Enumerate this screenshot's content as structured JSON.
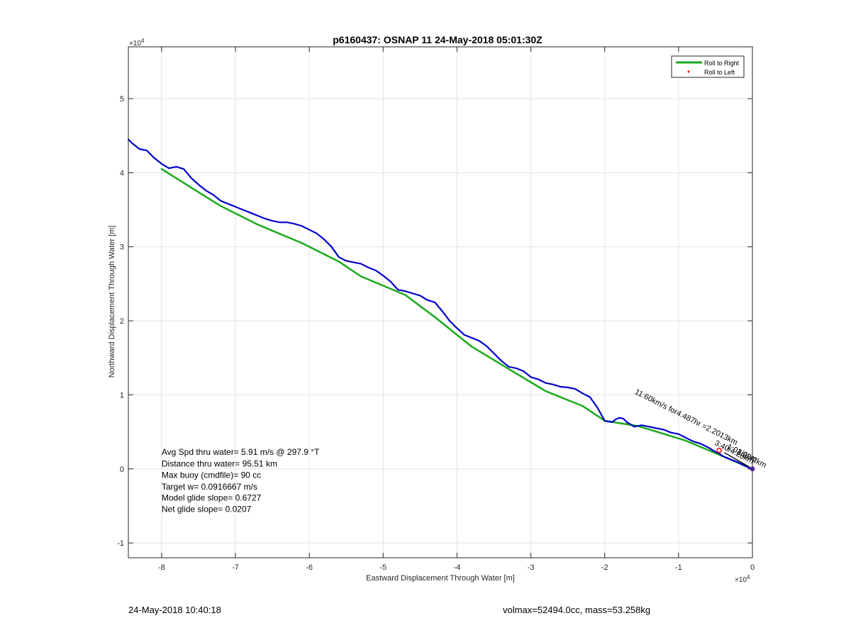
{
  "chart_data": {
    "type": "line",
    "title": "p6160437: OSNAP 11 24-May-2018 05:01:30Z",
    "xlabel": "Eastward Displacement Through Water [m]",
    "ylabel": "Northward Displacement Through Water [m]",
    "x_exponent_label": "×10",
    "x_exponent_power": "4",
    "y_exponent_label": "×10",
    "y_exponent_power": "4",
    "xlim": [
      -84500,
      0
    ],
    "ylim": [
      -12000,
      57000
    ],
    "xticks": [
      -80000,
      -70000,
      -60000,
      -50000,
      -40000,
      -30000,
      -20000,
      -10000,
      0
    ],
    "xtick_labels": [
      "-8",
      "-7",
      "-6",
      "-5",
      "-4",
      "-3",
      "-2",
      "-1",
      "0"
    ],
    "yticks": [
      -10000,
      0,
      10000,
      20000,
      30000,
      40000,
      50000
    ],
    "ytick_labels": [
      "-1",
      "0",
      "1",
      "2",
      "3",
      "4",
      "5"
    ],
    "grid": true,
    "legend_position": "top-right",
    "legend": [
      {
        "name": "Roll to Right",
        "color": "#1aaa1a",
        "style": "line"
      },
      {
        "name": "Roll to Left",
        "color": "#ff0000",
        "style": "dot"
      }
    ],
    "series": [
      {
        "name": "Roll to Right",
        "color": "#1aaa1a",
        "x": [
          0,
          -4000,
          -9000,
          -15500,
          -20000,
          -23000,
          -28000,
          -33000,
          -38000,
          -43000,
          -47000,
          -53000,
          -56000,
          -61000,
          -67000,
          -72000,
          -76000,
          -80000
        ],
        "y": [
          0,
          1700,
          3800,
          5800,
          6500,
          8500,
          10500,
          13500,
          16500,
          20500,
          23500,
          26000,
          28000,
          30500,
          33000,
          35500,
          38000,
          40500
        ]
      },
      {
        "name": "",
        "color": "#0000cc",
        "x": [
          0,
          -1000,
          -2000,
          -3000,
          -4000,
          -4500,
          -5000,
          -6000,
          -7000,
          -8000,
          -9000,
          -10000,
          -11000,
          -12000,
          -13000,
          -14000,
          -15000,
          -15500,
          -16000,
          -17000,
          -17500,
          -18000,
          -18500,
          -19000,
          -19500,
          -20000,
          -21000,
          -22000,
          -23000,
          -24000,
          -25000,
          -26000,
          -27000,
          -28000,
          -29000,
          -30000,
          -31000,
          -32000,
          -33000,
          -34000,
          -35000,
          -36000,
          -37000,
          -38000,
          -39000,
          -40000,
          -41000,
          -42000,
          -43000,
          -44000,
          -45000,
          -46000,
          -47000,
          -48000,
          -49000,
          -50000,
          -51000,
          -52000,
          -53000,
          -54000,
          -55000,
          -56000,
          -57000,
          -58000,
          -59000,
          -60000,
          -61000,
          -62000,
          -63000,
          -64000,
          -65000,
          -66000,
          -67000,
          -68000,
          -69000,
          -70000,
          -71000,
          -72000,
          -73000,
          -74000,
          -75000,
          -76000,
          -77000,
          -78000,
          -79000,
          -80000,
          -81000,
          -82000,
          -83000,
          -84000,
          -84500
        ],
        "y": [
          0,
          400,
          900,
          1300,
          1700,
          2100,
          2300,
          2900,
          3400,
          3700,
          4200,
          4700,
          4900,
          5300,
          5500,
          5700,
          5900,
          5800,
          5700,
          6300,
          6800,
          6900,
          6700,
          6300,
          6400,
          6500,
          8300,
          9700,
          10200,
          10800,
          11000,
          11100,
          11400,
          11600,
          12100,
          12400,
          13200,
          13600,
          13800,
          14600,
          15600,
          16600,
          17300,
          17700,
          18100,
          19000,
          20000,
          21300,
          22500,
          22800,
          23400,
          23700,
          24000,
          24200,
          25300,
          26100,
          26800,
          27200,
          27700,
          27900,
          28100,
          28600,
          30000,
          31000,
          31800,
          32300,
          32800,
          33100,
          33300,
          33300,
          33500,
          33800,
          34200,
          34600,
          35000,
          35400,
          35800,
          36200,
          37000,
          37600,
          38400,
          39300,
          40500,
          40800,
          40600,
          41200,
          42000,
          43000,
          43200,
          44000,
          44500
        ]
      }
    ],
    "annotations": [
      {
        "text": "Avg Spd thru water=  5.91 m/s @ 297.9 °T",
        "x": -80000,
        "y": 1900
      },
      {
        "text": "Distance thru water= 95.51 km",
        "x": -80000,
        "y": 300
      },
      {
        "text": "Max buoy (cmdfile)= 90 cc",
        "x": -80000,
        "y": -1200
      },
      {
        "text": "Target w= 0.0916667 m/s",
        "x": -80000,
        "y": -2800
      },
      {
        "text": "Model glide slope= 0.6727",
        "x": -80000,
        "y": -4300
      },
      {
        "text": "Net glide slope= 0.0207",
        "x": -80000,
        "y": -5800
      }
    ],
    "rotated_annotations": [
      {
        "text": "11:60km/s for4.487hr =2.2013km",
        "x": -16000,
        "y": 10200,
        "angle": 27
      },
      {
        "text": "3:40/4.28km",
        "x": -5200,
        "y": 3300,
        "angle": 27
      },
      {
        "text": "1:02/2km",
        "x": -3500,
        "y": 2800,
        "angle": 27
      },
      {
        "text": "1:00/2km",
        "x": -2200,
        "y": 2100,
        "angle": 27
      }
    ],
    "footer_left": "24-May-2018 10:40:18",
    "footer_right": "volmax=52494.0cc, mass=53.258kg"
  }
}
